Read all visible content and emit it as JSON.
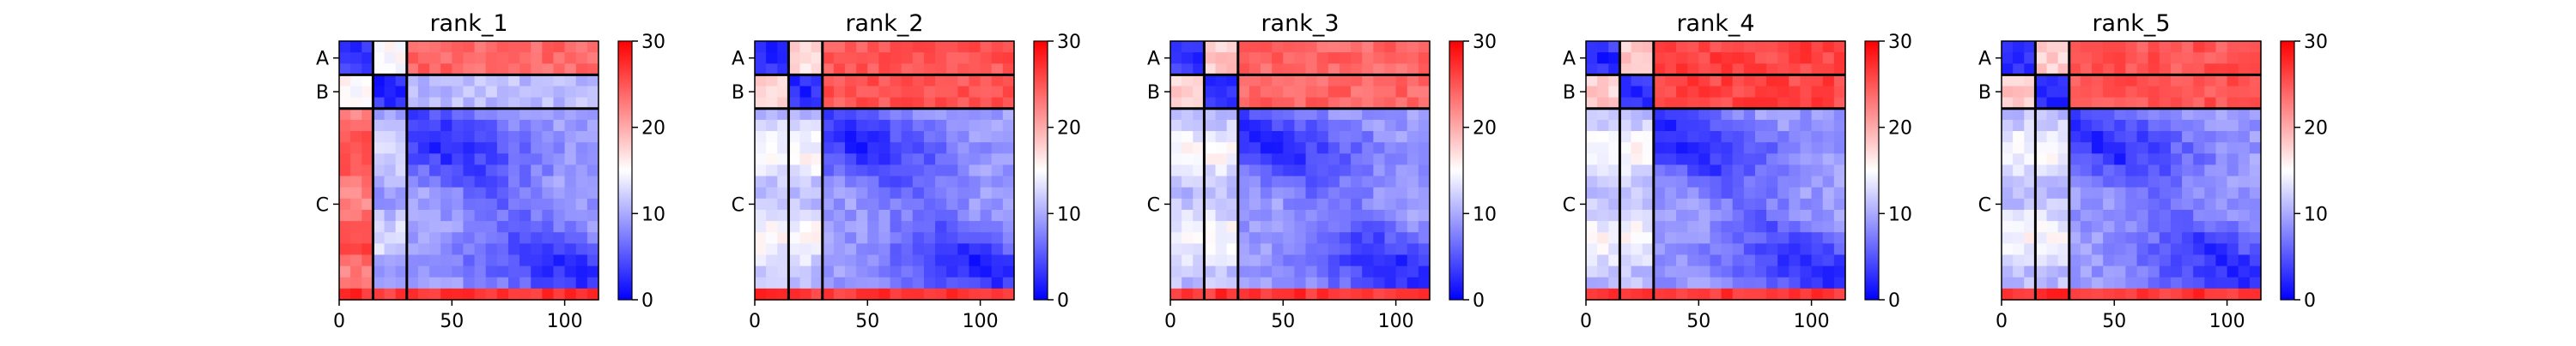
{
  "chart_data": [
    {
      "type": "heatmap",
      "title": "rank_1",
      "chain_labels": [
        "A",
        "B",
        "C"
      ],
      "chain_boundaries": [
        15,
        30,
        115
      ],
      "x_ticks": [
        0,
        50,
        100
      ],
      "xlim": [
        0,
        115
      ],
      "colorbar": {
        "range": [
          0,
          30
        ],
        "ticks": [
          0,
          10,
          20,
          30
        ],
        "colors": [
          "#0000ff",
          "#ffffff",
          "#ff0000"
        ]
      },
      "block_means": [
        [
          3,
          15,
          24
        ],
        [
          15,
          3,
          11
        ],
        [
          24,
          11,
          6
        ]
      ]
    },
    {
      "type": "heatmap",
      "title": "rank_2",
      "chain_labels": [
        "A",
        "B",
        "C"
      ],
      "chain_boundaries": [
        15,
        30,
        115
      ],
      "x_ticks": [
        0,
        50,
        100
      ],
      "xlim": [
        0,
        115
      ],
      "colorbar": {
        "range": [
          0,
          30
        ],
        "ticks": [
          0,
          10,
          20,
          30
        ],
        "colors": [
          "#0000ff",
          "#ffffff",
          "#ff0000"
        ]
      },
      "block_means": [
        [
          3,
          17,
          25
        ],
        [
          17,
          3,
          25
        ],
        [
          13,
          13,
          6
        ]
      ]
    },
    {
      "type": "heatmap",
      "title": "rank_3",
      "chain_labels": [
        "A",
        "B",
        "C"
      ],
      "chain_boundaries": [
        15,
        30,
        115
      ],
      "x_ticks": [
        0,
        50,
        100
      ],
      "xlim": [
        0,
        115
      ],
      "colorbar": {
        "range": [
          0,
          30
        ],
        "ticks": [
          0,
          10,
          20,
          30
        ],
        "colors": [
          "#0000ff",
          "#ffffff",
          "#ff0000"
        ]
      },
      "block_means": [
        [
          3,
          18,
          24
        ],
        [
          18,
          3,
          24
        ],
        [
          13,
          13,
          6
        ]
      ]
    },
    {
      "type": "heatmap",
      "title": "rank_4",
      "chain_labels": [
        "A",
        "B",
        "C"
      ],
      "chain_boundaries": [
        15,
        30,
        115
      ],
      "x_ticks": [
        0,
        50,
        100
      ],
      "xlim": [
        0,
        115
      ],
      "colorbar": {
        "range": [
          0,
          30
        ],
        "ticks": [
          0,
          10,
          20,
          30
        ],
        "colors": [
          "#0000ff",
          "#ffffff",
          "#ff0000"
        ]
      },
      "block_means": [
        [
          3,
          18,
          26
        ],
        [
          18,
          3,
          26
        ],
        [
          13,
          13,
          6
        ]
      ]
    },
    {
      "type": "heatmap",
      "title": "rank_5",
      "chain_labels": [
        "A",
        "B",
        "C"
      ],
      "chain_boundaries": [
        15,
        30,
        115
      ],
      "x_ticks": [
        0,
        50,
        100
      ],
      "xlim": [
        0,
        115
      ],
      "colorbar": {
        "range": [
          0,
          30
        ],
        "ticks": [
          0,
          10,
          20,
          30
        ],
        "colors": [
          "#0000ff",
          "#ffffff",
          "#ff0000"
        ]
      },
      "block_means": [
        [
          3,
          18,
          25
        ],
        [
          18,
          3,
          25
        ],
        [
          13,
          13,
          6
        ]
      ]
    }
  ]
}
